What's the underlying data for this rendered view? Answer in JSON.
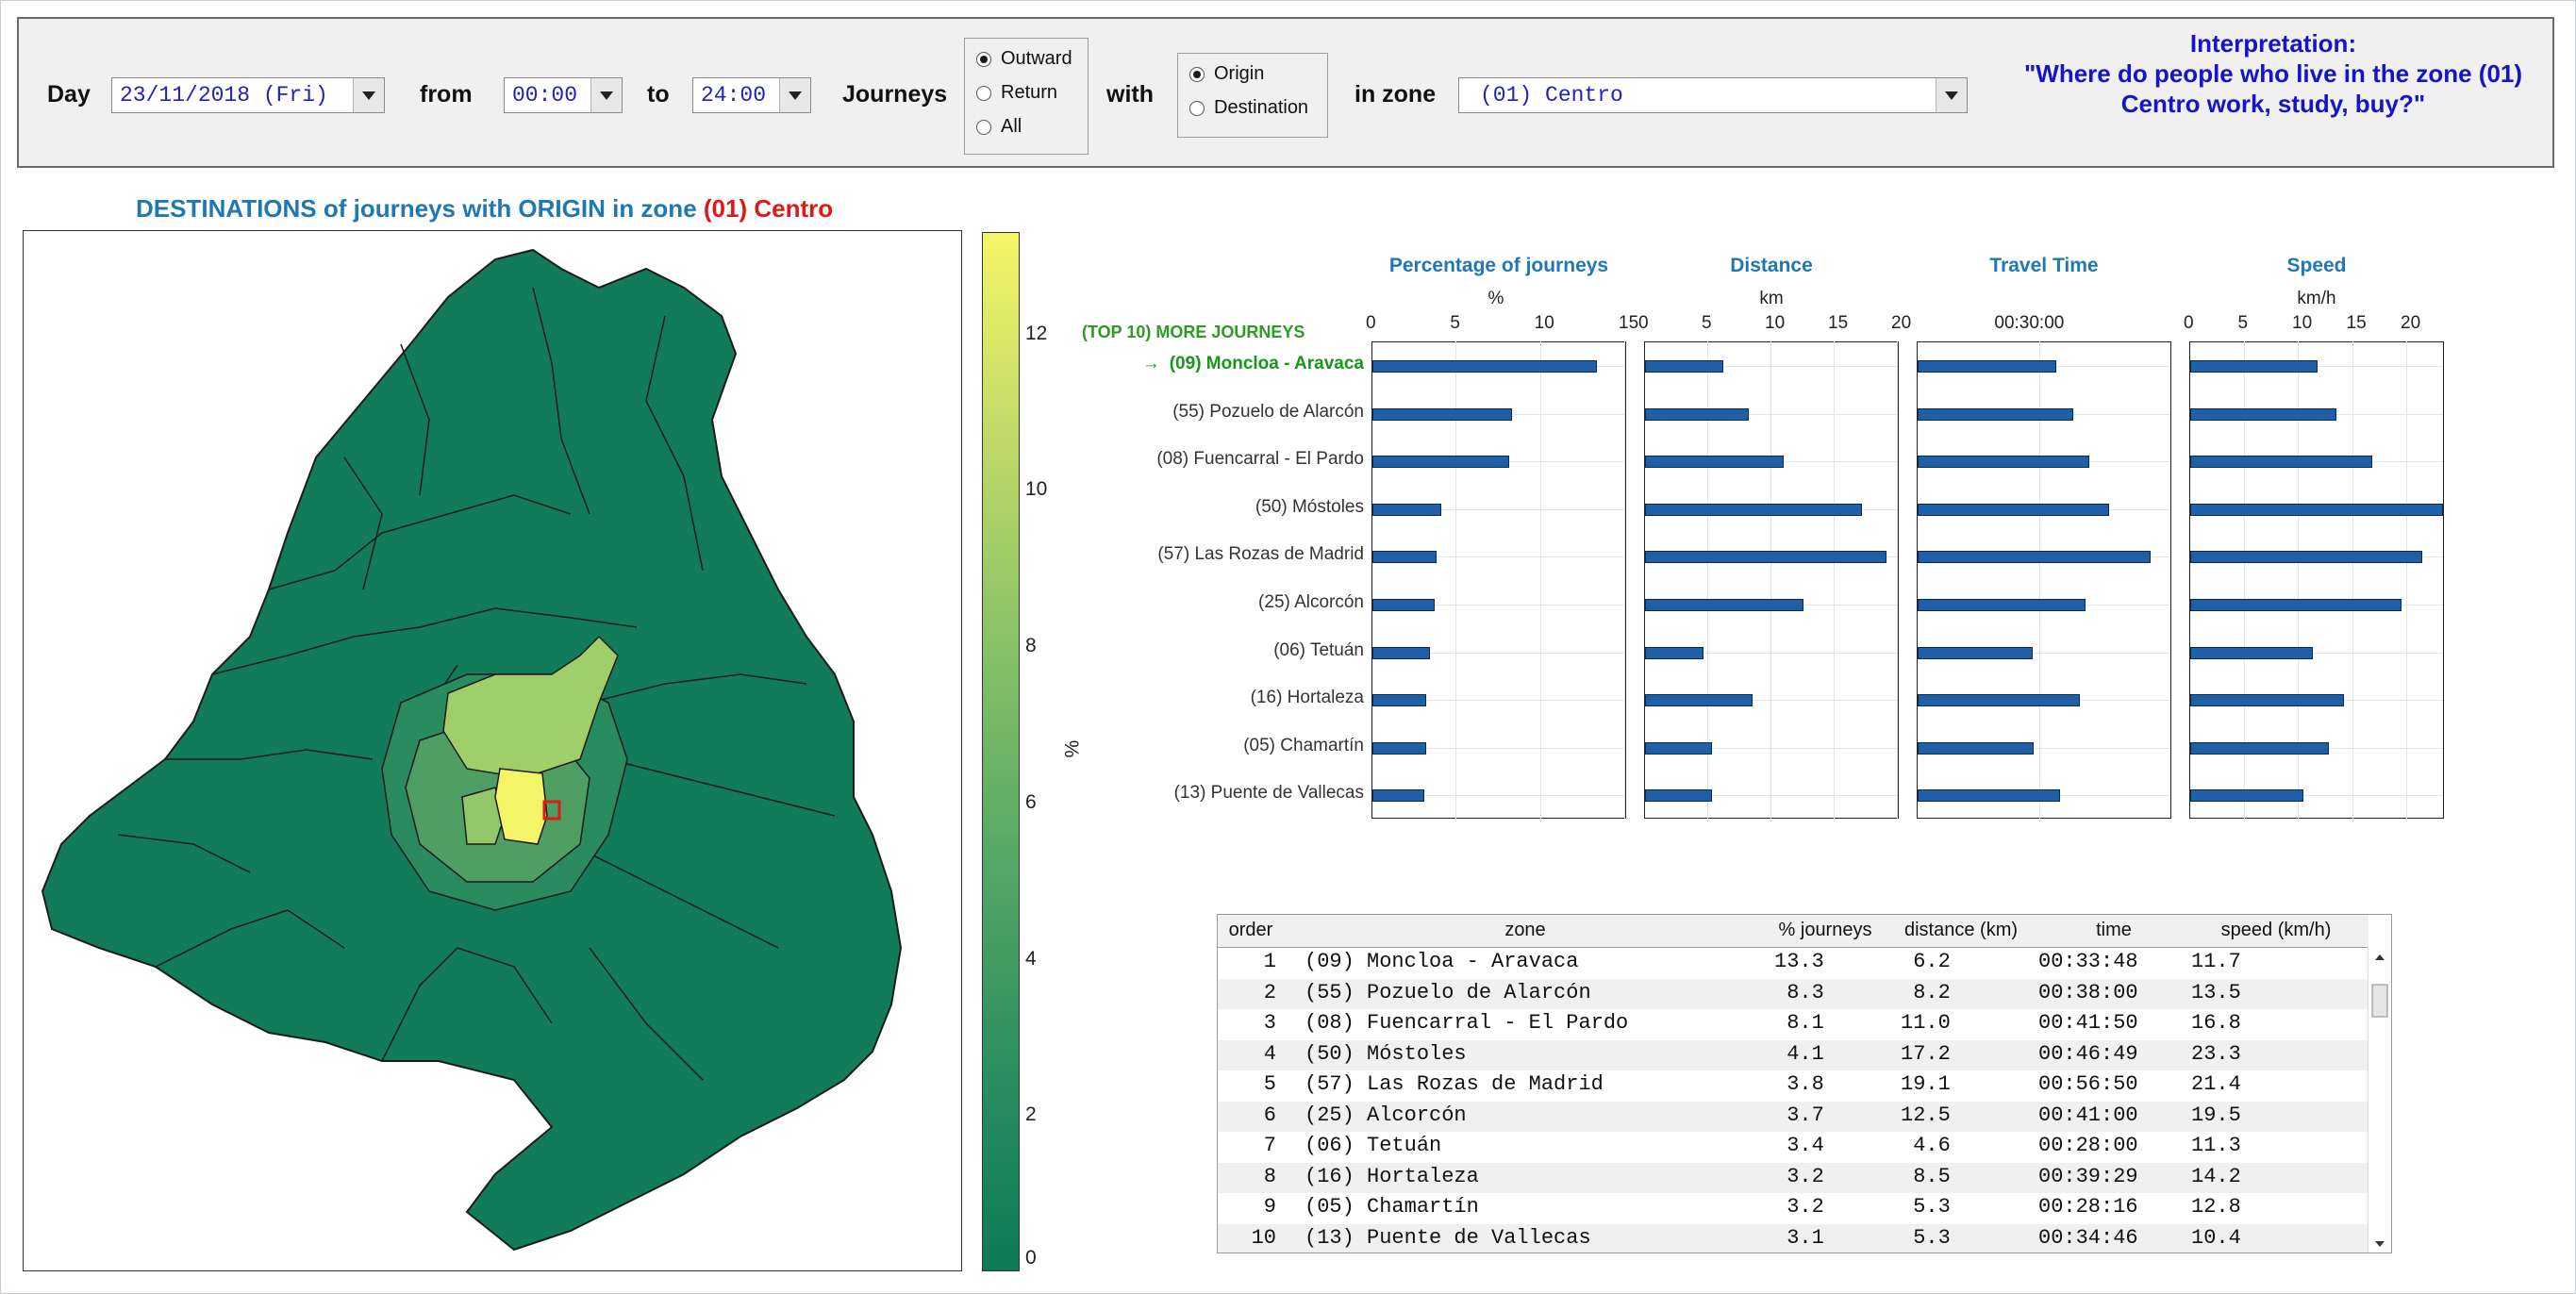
{
  "controls": {
    "day_label": "Day",
    "day_value": "23/11/2018 (Fri)",
    "from_label": "from",
    "from_value": "00:00",
    "to_label": "to",
    "to_value": "24:00",
    "journeys_label": "Journeys",
    "journey_options": [
      "Outward",
      "Return",
      "All"
    ],
    "journey_selected": "Outward",
    "with_label": "with",
    "with_options": [
      "Origin",
      "Destination"
    ],
    "with_selected": "Origin",
    "zone_label": "in zone",
    "zone_value": "(01) Centro"
  },
  "interpretation": {
    "title": "Interpretation:",
    "line1": "\"Where do people who live in the zone (01)",
    "line2": "Centro work, study, buy?\""
  },
  "map": {
    "title_prefix": "DESTINATIONS of journeys with ORIGIN in zone ",
    "title_zone": "(01) Centro",
    "colorbar_ticks": [
      "12",
      "10",
      "8",
      "6",
      "4",
      "2",
      "0"
    ],
    "colorbar_unit": "%",
    "colorbar_max": 13.3,
    "colors": {
      "low": "#0e7a58",
      "high": "#f5f568",
      "selected_zone_outline": "#e01818"
    }
  },
  "bar_charts": {
    "top10_label": "(TOP 10) MORE JOURNEYS",
    "arrow": "→",
    "charts": [
      {
        "title": "Percentage of journeys",
        "unit": "%",
        "ticks": [
          "0",
          "5",
          "10",
          "15"
        ],
        "max": 15
      },
      {
        "title": "Distance",
        "unit": "km",
        "ticks": [
          "0",
          "5",
          "10",
          "15",
          "20"
        ],
        "max": 20
      },
      {
        "title": "Travel Time",
        "unit": "",
        "ticks": [
          "00:30:00"
        ],
        "max": 3700
      },
      {
        "title": "Speed",
        "unit": "km/h",
        "ticks": [
          "0",
          "5",
          "10",
          "15",
          "20"
        ],
        "max": 23.3
      }
    ],
    "bar_color": "#1f5fa8"
  },
  "chart_data": {
    "type": "bar",
    "categories": [
      "(09) Moncloa - Aravaca",
      "(55) Pozuelo de Alarcón",
      "(08) Fuencarral - El Pardo",
      "(50) Móstoles",
      "(57) Las Rozas de Madrid",
      "(25) Alcorcón",
      "(06) Tetuán",
      "(16) Hortaleza",
      "(05) Chamartín",
      "(13) Puente de Vallecas"
    ],
    "series": [
      {
        "name": "Percentage of journeys",
        "values": [
          13.3,
          8.3,
          8.1,
          4.1,
          3.8,
          3.7,
          3.4,
          3.2,
          3.2,
          3.1
        ]
      },
      {
        "name": "Distance",
        "values": [
          6.2,
          8.2,
          11.0,
          17.2,
          19.1,
          12.5,
          4.6,
          8.5,
          5.3,
          5.3
        ]
      },
      {
        "name": "Travel Time",
        "values_seconds": [
          2028,
          2280,
          2510,
          2809,
          3410,
          2460,
          1680,
          2369,
          1696,
          2086
        ]
      },
      {
        "name": "Speed",
        "values": [
          11.7,
          13.5,
          16.8,
          23.3,
          21.4,
          19.5,
          11.3,
          14.2,
          12.8,
          10.4
        ]
      }
    ]
  },
  "table": {
    "headers": [
      "order",
      "zone",
      "% journeys",
      "distance (km)",
      "time",
      "speed (km/h)"
    ],
    "rows": [
      [
        "1",
        "(09) Moncloa - Aravaca",
        "13.3",
        " 6.2",
        "00:33:48",
        "11.7"
      ],
      [
        "2",
        "(55) Pozuelo de Alarcón",
        " 8.3",
        " 8.2",
        "00:38:00",
        "13.5"
      ],
      [
        "3",
        "(08) Fuencarral - El Pardo",
        " 8.1",
        "11.0",
        "00:41:50",
        "16.8"
      ],
      [
        "4",
        "(50) Móstoles",
        " 4.1",
        "17.2",
        "00:46:49",
        "23.3"
      ],
      [
        "5",
        "(57) Las Rozas de Madrid",
        " 3.8",
        "19.1",
        "00:56:50",
        "21.4"
      ],
      [
        "6",
        "(25) Alcorcón",
        " 3.7",
        "12.5",
        "00:41:00",
        "19.5"
      ],
      [
        "7",
        "(06) Tetuán",
        " 3.4",
        " 4.6",
        "00:28:00",
        "11.3"
      ],
      [
        "8",
        "(16) Hortaleza",
        " 3.2",
        " 8.5",
        "00:39:29",
        "14.2"
      ],
      [
        "9",
        "(05) Chamartín",
        " 3.2",
        " 5.3",
        "00:28:16",
        "12.8"
      ],
      [
        "10",
        "(13) Puente de Vallecas",
        " 3.1",
        " 5.3",
        "00:34:46",
        "10.4"
      ]
    ]
  }
}
